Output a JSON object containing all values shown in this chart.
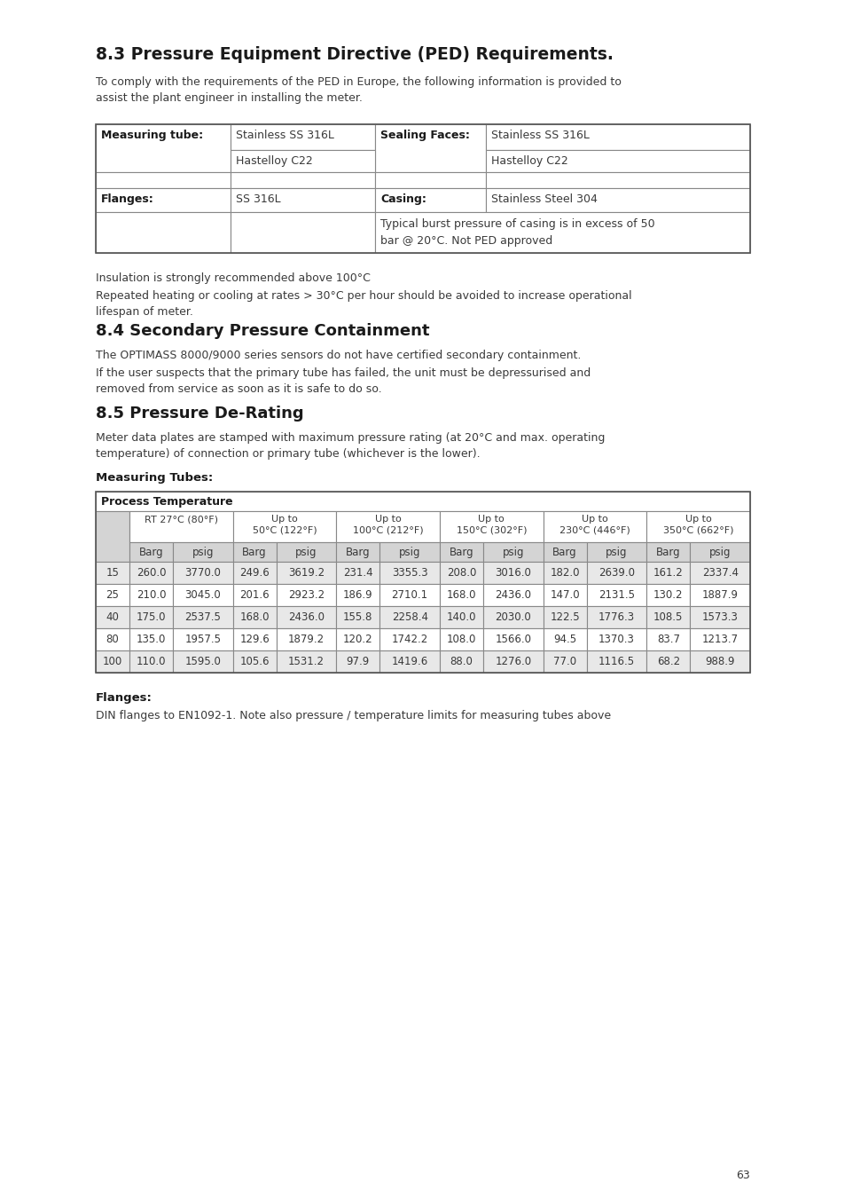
{
  "section_title_1": "8.3 Pressure Equipment Directive (PED) Requirements.",
  "para1": "To comply with the requirements of the PED in Europe, the following information is provided to\nassist the plant engineer in installing the meter.",
  "para2": "Insulation is strongly recommended above 100°C",
  "para3": "Repeated heating or cooling at rates > 30°C per hour should be avoided to increase operational\nlifespan of meter.",
  "section_title_2": "8.4 Secondary Pressure Containment",
  "para4": "The OPTIMASS 8000/9000 series sensors do not have certified secondary containment.",
  "para5": "If the user suspects that the primary tube has failed, the unit must be depressurised and\nremoved from service as soon as it is safe to do so.",
  "section_title_3": "8.5 Pressure De-Rating",
  "para6": "Meter data plates are stamped with maximum pressure rating (at 20°C and max. operating\ntemperature) of connection or primary tube (whichever is the lower).",
  "measuring_tubes_label": "Measuring Tubes:",
  "process_temp_label": "Process Temperature",
  "table_data": [
    [
      "15",
      "260.0",
      "3770.0",
      "249.6",
      "3619.2",
      "231.4",
      "3355.3",
      "208.0",
      "3016.0",
      "182.0",
      "2639.0",
      "161.2",
      "2337.4"
    ],
    [
      "25",
      "210.0",
      "3045.0",
      "201.6",
      "2923.2",
      "186.9",
      "2710.1",
      "168.0",
      "2436.0",
      "147.0",
      "2131.5",
      "130.2",
      "1887.9"
    ],
    [
      "40",
      "175.0",
      "2537.5",
      "168.0",
      "2436.0",
      "155.8",
      "2258.4",
      "140.0",
      "2030.0",
      "122.5",
      "1776.3",
      "108.5",
      "1573.3"
    ],
    [
      "80",
      "135.0",
      "1957.5",
      "129.6",
      "1879.2",
      "120.2",
      "1742.2",
      "108.0",
      "1566.0",
      "94.5",
      "1370.3",
      "83.7",
      "1213.7"
    ],
    [
      "100",
      "110.0",
      "1595.0",
      "105.6",
      "1531.2",
      "97.9",
      "1419.6",
      "88.0",
      "1276.0",
      "77.0",
      "1116.5",
      "68.2",
      "988.9"
    ]
  ],
  "flanges_label": "Flanges:",
  "para7": "DIN flanges to EN1092-1. Note also pressure / temperature limits for measuring tubes above",
  "page_number": "63",
  "bg_color": "#ffffff",
  "dark_text": "#1a1a1a",
  "body_text": "#3a3a3a",
  "table_gray": "#d4d4d4",
  "table_alt": "#e8e8e8",
  "table_white": "#ffffff",
  "table_border": "#888888"
}
